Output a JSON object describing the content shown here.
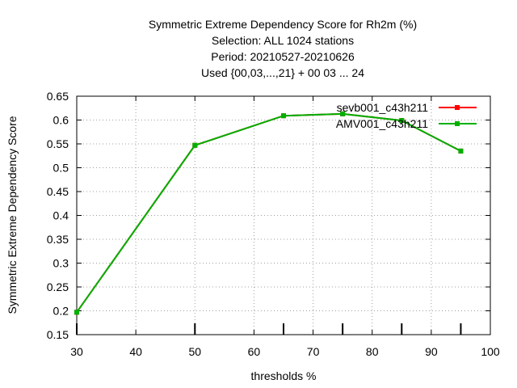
{
  "chart_data": {
    "type": "line",
    "title": [
      "Symmetric Extreme Dependency Score  for Rh2m (%)",
      "Selection: ALL    1024 stations",
      "Period: 20210527-20210626",
      "Used {00,03,...,21} + 00 03 ... 24"
    ],
    "xlabel": "thresholds %",
    "ylabel": "Symmetric Extreme Dependency Score",
    "xlim": [
      30,
      100
    ],
    "ylim": [
      0.15,
      0.65
    ],
    "xticks": [
      30,
      40,
      50,
      60,
      70,
      80,
      90,
      100
    ],
    "xtick_labels": [
      "30",
      "40",
      "50",
      "60",
      "70",
      "80",
      "90",
      "100"
    ],
    "yticks": [
      0.15,
      0.2,
      0.25,
      0.3,
      0.35,
      0.4,
      0.45,
      0.5,
      0.55,
      0.6,
      0.65
    ],
    "ytick_labels": [
      "0.15",
      "0.2",
      "0.25",
      "0.3",
      "0.35",
      "0.4",
      "0.45",
      "0.5",
      "0.55",
      "0.6",
      "0.65"
    ],
    "threshold_marks": [
      30,
      50,
      65,
      75,
      85,
      95
    ],
    "grid": true,
    "legend_position": "top-right",
    "series": [
      {
        "name": "sevb001_c43h211",
        "color": "#ff0000",
        "x": [
          30,
          50,
          65,
          75,
          85,
          95
        ],
        "y": [
          0.197,
          0.547,
          0.609,
          0.613,
          0.599,
          0.535
        ]
      },
      {
        "name": "AMV001_c43h211",
        "color": "#00b000",
        "x": [
          30,
          50,
          65,
          75,
          85,
          95
        ],
        "y": [
          0.197,
          0.547,
          0.609,
          0.613,
          0.599,
          0.535
        ]
      }
    ]
  }
}
